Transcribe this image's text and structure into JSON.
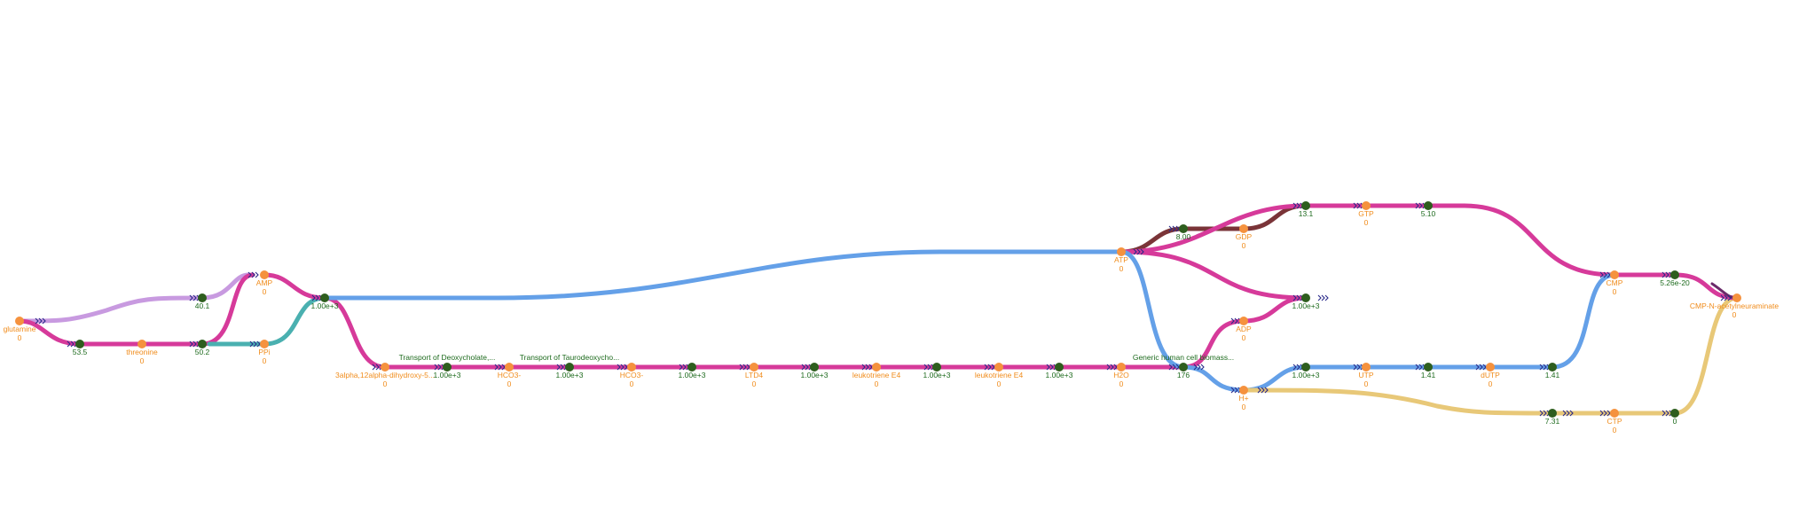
{
  "colors": {
    "metabolite": "#f5923e",
    "reaction": "#2e5e1e",
    "magenta": "#d63a9a",
    "blue": "#64a0e8",
    "lavender": "#c89ae0",
    "teal": "#4ab0b0",
    "brown": "#7a3438",
    "gold": "#e8c878",
    "arrow": "#2a2a8a"
  },
  "metabolites": [
    {
      "name": "glutamine",
      "value": "0"
    },
    {
      "name": "threonine",
      "value": "0"
    },
    {
      "name": "AMP",
      "value": "0"
    },
    {
      "name": "PPi",
      "value": "0"
    },
    {
      "name": "3alpha,12alpha-dihydroxy-5...",
      "value": "0"
    },
    {
      "name": "HCO3-",
      "value": "0"
    },
    {
      "name": "HCO3-",
      "value": "0"
    },
    {
      "name": "LTD4",
      "value": "0"
    },
    {
      "name": "leukotriene E4",
      "value": "0"
    },
    {
      "name": "leukotriene E4",
      "value": "0"
    },
    {
      "name": "H2O",
      "value": "0"
    },
    {
      "name": "ATP",
      "value": "0"
    },
    {
      "name": "GDP",
      "value": "0"
    },
    {
      "name": "GTP",
      "value": "0"
    },
    {
      "name": "ADP",
      "value": "0"
    },
    {
      "name": "H+",
      "value": "0"
    },
    {
      "name": "UTP",
      "value": "0"
    },
    {
      "name": "dUTP",
      "value": "0"
    },
    {
      "name": "CMP",
      "value": "0"
    },
    {
      "name": "CTP",
      "value": "0"
    },
    {
      "name": "CMP-N-acetylneuraminate",
      "value": "0"
    }
  ],
  "reactions": [
    {
      "value": "53.5",
      "title": ""
    },
    {
      "value": "40.1",
      "title": ""
    },
    {
      "value": "50.2",
      "title": ""
    },
    {
      "value": "1.00e+3",
      "title": ""
    },
    {
      "value": "1.00e+3",
      "title": "Transport of Deoxycholate,..."
    },
    {
      "value": "1.00e+3",
      "title": "Transport of Taurodeoxycho..."
    },
    {
      "value": "1.00e+3",
      "title": ""
    },
    {
      "value": "1.00e+3",
      "title": ""
    },
    {
      "value": "1.00e+3",
      "title": ""
    },
    {
      "value": "1.00e+3",
      "title": ""
    },
    {
      "value": "176",
      "title": "Generic human cell biomass..."
    },
    {
      "value": "8.00",
      "title": ""
    },
    {
      "value": "13.1",
      "title": ""
    },
    {
      "value": "5.10",
      "title": ""
    },
    {
      "value": "1.00e+3",
      "title": ""
    },
    {
      "value": "1.00e+3",
      "title": ""
    },
    {
      "value": "1.41",
      "title": ""
    },
    {
      "value": "1.41",
      "title": ""
    },
    {
      "value": "7.31",
      "title": ""
    },
    {
      "value": "5.26e-20",
      "title": ""
    },
    {
      "value": "0",
      "title": ""
    }
  ]
}
